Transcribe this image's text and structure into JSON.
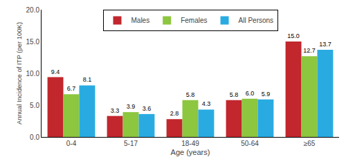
{
  "chart_data": {
    "type": "bar",
    "categories": [
      "0-4",
      "5-17",
      "18-49",
      "50-64",
      "≥65"
    ],
    "series": [
      {
        "name": "Males",
        "color": "#C1272D",
        "values": [
          9.4,
          3.3,
          2.8,
          5.8,
          15.0
        ],
        "value_labels": [
          "9.4",
          "3.3",
          "2.8",
          "5.8",
          "15.0"
        ]
      },
      {
        "name": "Females",
        "color": "#8DC63F",
        "values": [
          6.7,
          3.9,
          5.8,
          6.0,
          12.7
        ],
        "value_labels": [
          "6.7",
          "3.9",
          "5.8",
          "6.0",
          "12.7"
        ]
      },
      {
        "name": "All Persons",
        "color": "#29ABE2",
        "values": [
          8.1,
          3.6,
          4.3,
          5.9,
          13.7
        ],
        "value_labels": [
          "8.1",
          "3.6",
          "4.3",
          "5.9",
          "13.7"
        ]
      }
    ],
    "xlabel": "Age (years)",
    "ylabel": "Annual Incidence of ITP (per 100K)",
    "ylim": [
      0,
      20.0
    ],
    "yticks": [
      {
        "value": 0,
        "label": "0.0"
      },
      {
        "value": 5,
        "label": "5.0"
      },
      {
        "value": 10,
        "label": "10.0"
      },
      {
        "value": 15,
        "label": "15.0"
      },
      {
        "value": 20,
        "label": "20.0"
      }
    ],
    "grid": false,
    "legend": "top",
    "data_labels": true
  }
}
